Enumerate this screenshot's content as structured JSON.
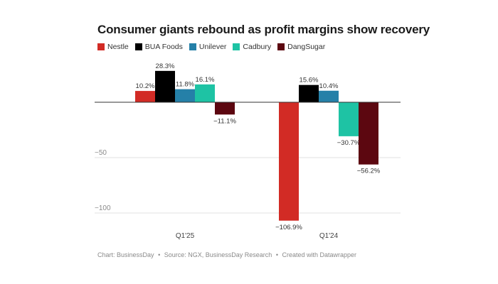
{
  "chart_data": {
    "type": "bar",
    "title": "Consumer giants rebound as profit margins show recovery",
    "categories": [
      "Q1'25",
      "Q1'24"
    ],
    "series": [
      {
        "name": "Nestle",
        "color": "#d22b25",
        "values": [
          10.2,
          -106.9
        ],
        "labels": [
          "10.2%",
          "−106.9%"
        ]
      },
      {
        "name": "BUA Foods",
        "color": "#000000",
        "values": [
          28.3,
          15.6
        ],
        "labels": [
          "28.3%",
          "15.6%"
        ]
      },
      {
        "name": "Unilever",
        "color": "#2580a8",
        "values": [
          11.8,
          10.4
        ],
        "labels": [
          "11.8%",
          "10.4%"
        ]
      },
      {
        "name": "Cadbury",
        "color": "#1ec3a4",
        "values": [
          16.1,
          -30.7
        ],
        "labels": [
          "16.1%",
          "−30.7%"
        ]
      },
      {
        "name": "DangSugar",
        "color": "#5c0710",
        "values": [
          -11.1,
          -56.2
        ],
        "labels": [
          "−11.1%",
          "−56.2%"
        ]
      }
    ],
    "y_ticks": [
      {
        "value": -50,
        "label": "−50"
      },
      {
        "value": -100,
        "label": "−100"
      }
    ],
    "ylim": [
      -110,
      30
    ],
    "legend": "top-left",
    "grid": true
  },
  "footer": {
    "source": "Chart: BusinessDay",
    "bullet1": "•",
    "credit": "Source: NGX, BusinessDay Research",
    "bullet2": "•",
    "tool": "Created with Datawrapper"
  }
}
